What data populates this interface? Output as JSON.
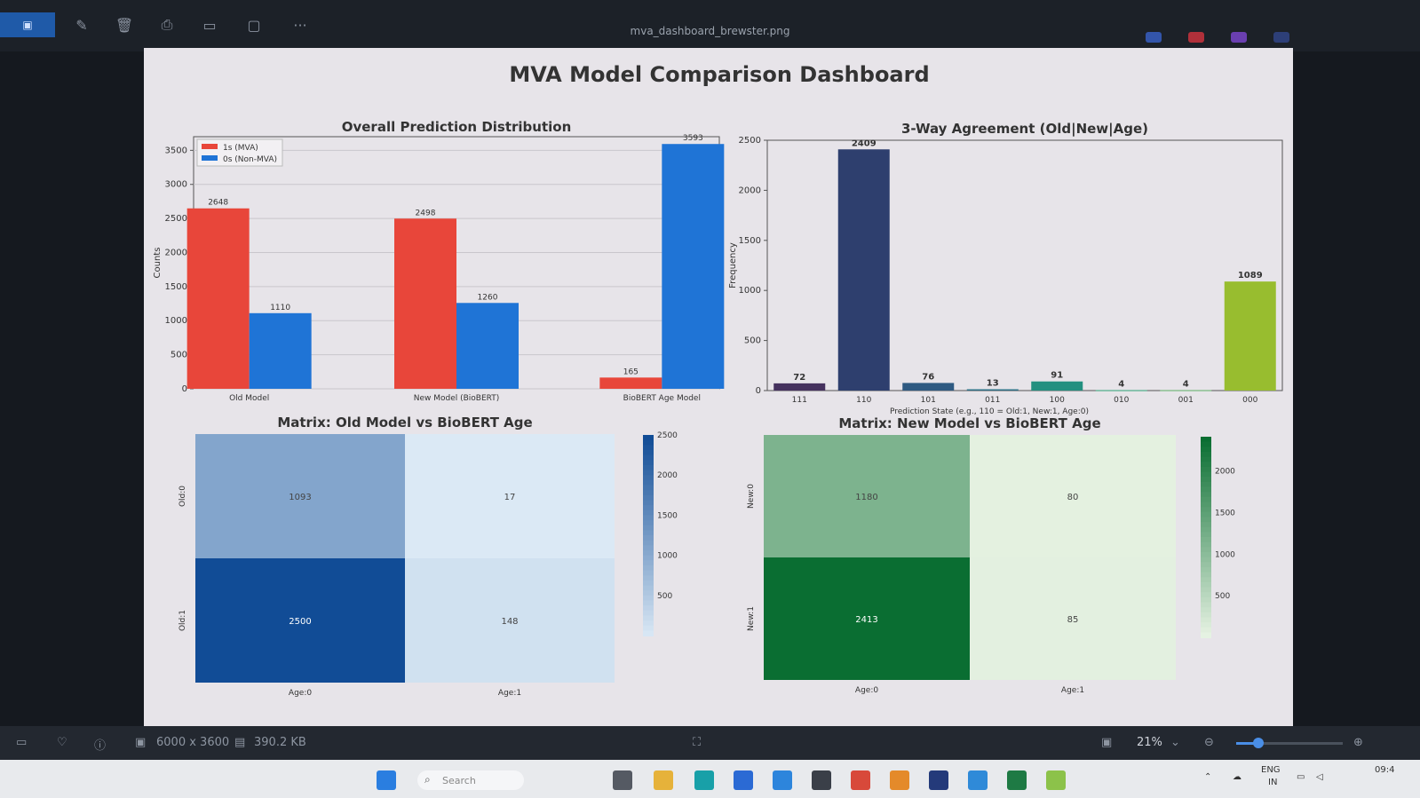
{
  "window": {
    "title": "mva_dashboard_brewster.png",
    "toolbar_icons": [
      "crop-icon",
      "delete-icon",
      "print-icon",
      "slideshow-icon",
      "edit-icon",
      "more-icon"
    ],
    "more_label": "···"
  },
  "dashboard": {
    "title": "MVA Model Comparison Dashboard"
  },
  "chart_data": [
    {
      "type": "bar",
      "title": "Overall Prediction Distribution",
      "ylabel": "Counts",
      "categories": [
        "Old Model",
        "New Model (BioBERT)",
        "BioBERT Age Model"
      ],
      "series": [
        {
          "name": "1s (MVA)",
          "values": [
            2648,
            2498,
            165
          ],
          "color": "#e8463a"
        },
        {
          "name": "0s (Non-MVA)",
          "values": [
            1110,
            1260,
            3593
          ],
          "color": "#1f74d6"
        }
      ],
      "ylim": [
        0,
        3700
      ],
      "yticks": [
        0,
        500,
        1000,
        1500,
        2000,
        2500,
        3000,
        3500
      ],
      "legend": "top-left",
      "data_labels": true
    },
    {
      "type": "bar",
      "title": "3-Way Agreement (Old|New|Age)",
      "ylabel": "Frequency",
      "xlabel": "Prediction State (e.g., 110 = Old:1, New:1, Age:0)",
      "categories": [
        "111",
        "110",
        "101",
        "011",
        "100",
        "010",
        "001",
        "000"
      ],
      "values": [
        72,
        2409,
        76,
        13,
        91,
        4,
        4,
        1089
      ],
      "colors": [
        "#45315e",
        "#2e3f6e",
        "#2f5a82",
        "#2a6f86",
        "#239080",
        "#33a87a",
        "#62b56b",
        "#98bd2f"
      ],
      "ylim": [
        0,
        2500
      ],
      "yticks": [
        0,
        500,
        1000,
        1500,
        2000,
        2500
      ],
      "data_labels": true
    },
    {
      "type": "heatmap",
      "title": "Matrix: Old Model vs BioBERT Age",
      "rows": [
        "Old:0",
        "Old:1"
      ],
      "cols": [
        "Age:0",
        "Age:1"
      ],
      "values": [
        [
          1093,
          17
        ],
        [
          2500,
          148
        ]
      ],
      "colorbar_ticks": [
        500,
        1000,
        1500,
        2000,
        2500
      ],
      "colormap": "Blues"
    },
    {
      "type": "heatmap",
      "title": "Matrix: New Model vs BioBERT Age",
      "rows": [
        "New:0",
        "New:1"
      ],
      "cols": [
        "Age:0",
        "Age:1"
      ],
      "values": [
        [
          1180,
          80
        ],
        [
          2413,
          85
        ]
      ],
      "colorbar_ticks": [
        500,
        1000,
        1500,
        2000
      ],
      "colormap": "Greens"
    }
  ],
  "statusbar": {
    "dimensions": "6000 x 3600",
    "filesize": "390.2 KB",
    "zoom": "21%",
    "zoom_level": 0.21
  },
  "taskbar": {
    "search_label": "Search",
    "lang": "ENG",
    "lang_sub": "IN",
    "clock": "09:4",
    "apps": [
      "windows-start-icon",
      "search-icon",
      "file-explorer-icon",
      "folder-icon",
      "edge-icon",
      "store-icon",
      "mail-icon",
      "terminal-icon",
      "chrome-icon",
      "app-icon",
      "vs-icon",
      "vscode-icon",
      "excel-icon",
      "notes-icon"
    ]
  }
}
